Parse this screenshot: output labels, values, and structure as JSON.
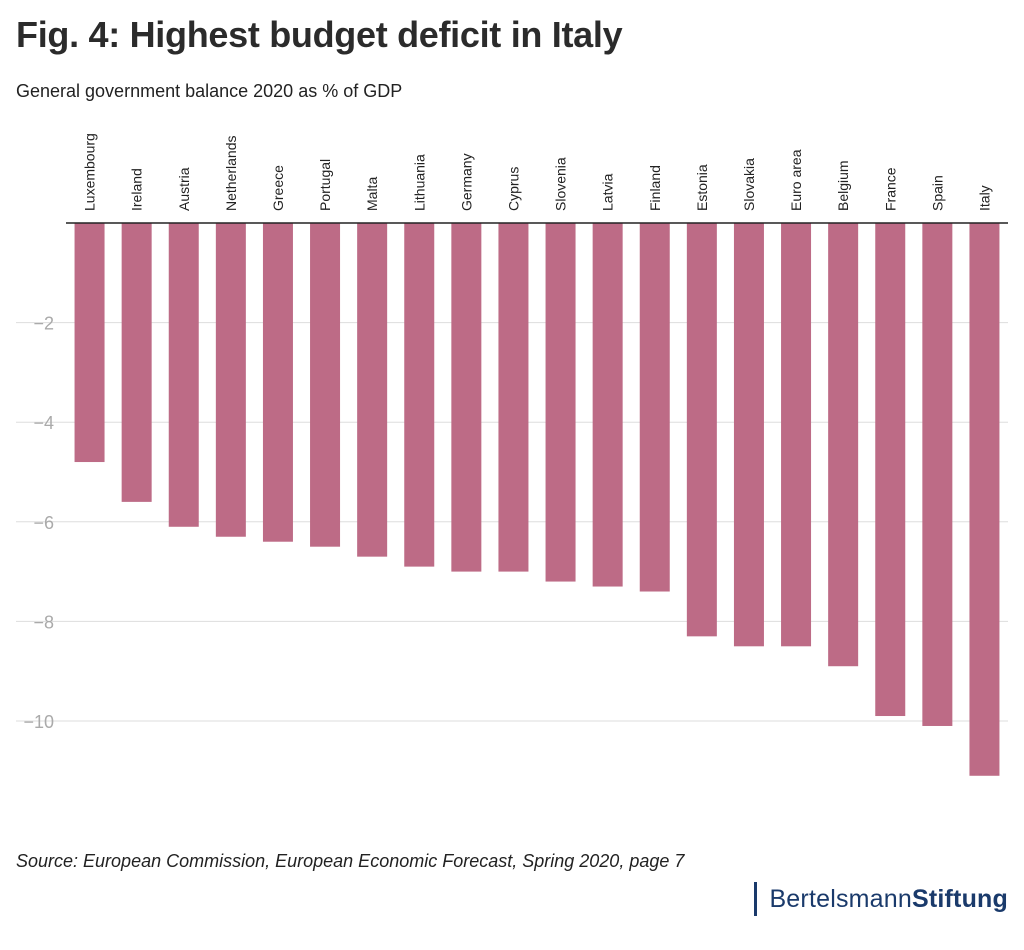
{
  "header": {
    "title": "Fig. 4: Highest budget deficit in Italy",
    "subtitle": "General government balance 2020 as % of GDP"
  },
  "footer": {
    "source": "Source: European Commission, European Economic Forecast, Spring 2020, page 7",
    "logo_light": "Bertelsmann",
    "logo_bold": "Stiftung"
  },
  "colors": {
    "bar": "#bd6b86",
    "grid": "#dddddd",
    "tick": "#aaaaaa",
    "baseline": "#222222",
    "logo": "#1a3a6b"
  },
  "chart_data": {
    "type": "bar",
    "title": "Fig. 4: Highest budget deficit in Italy",
    "subtitle": "General government balance 2020 as % of GDP",
    "xlabel": "",
    "ylabel": "",
    "ylim": [
      -11.8,
      0
    ],
    "yticks": [
      -2,
      -4,
      -6,
      -8,
      -10
    ],
    "ytick_labels": [
      "−2",
      "−4",
      "−6",
      "−8",
      "−10"
    ],
    "grid": true,
    "categories": [
      "Luxembourg",
      "Ireland",
      "Austria",
      "Netherlands",
      "Greece",
      "Portugal",
      "Malta",
      "Lithuania",
      "Germany",
      "Cyprus",
      "Slovenia",
      "Latvia",
      "Finland",
      "Estonia",
      "Slovakia",
      "Euro area",
      "Belgium",
      "France",
      "Spain",
      "Italy"
    ],
    "values": [
      -4.8,
      -5.6,
      -6.1,
      -6.3,
      -6.4,
      -6.5,
      -6.7,
      -6.9,
      -7.0,
      -7.0,
      -7.2,
      -7.3,
      -7.4,
      -8.3,
      -8.5,
      -8.5,
      -8.9,
      -9.9,
      -10.1,
      -11.1
    ]
  }
}
